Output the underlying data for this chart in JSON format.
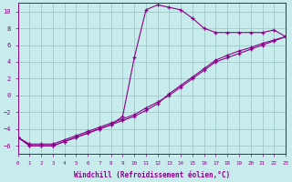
{
  "xlabel": "Windchill (Refroidissement éolien,°C)",
  "ylabel": "",
  "bg_color": "#c8ecec",
  "grid_color": "#a0c8c8",
  "line_color": "#880088",
  "xlim": [
    0,
    23
  ],
  "ylim": [
    -7,
    11
  ],
  "xticks": [
    0,
    1,
    2,
    3,
    4,
    5,
    6,
    7,
    8,
    9,
    10,
    11,
    12,
    13,
    14,
    15,
    16,
    17,
    18,
    19,
    20,
    21,
    22,
    23
  ],
  "yticks": [
    -6,
    -4,
    -2,
    0,
    2,
    4,
    6,
    8,
    10
  ],
  "line1_x": [
    0,
    1,
    2,
    3,
    4,
    5,
    6,
    7,
    8,
    9,
    10,
    11,
    12,
    13,
    14,
    15,
    16,
    17,
    18,
    19,
    20,
    21,
    22,
    23
  ],
  "line1_y": [
    -5.0,
    -6.0,
    -6.0,
    -6.0,
    -5.5,
    -5.0,
    -4.5,
    -4.0,
    -3.5,
    -2.5,
    4.5,
    10.2,
    10.8,
    10.5,
    10.2,
    9.2,
    8.0,
    7.5,
    7.5,
    7.5,
    7.5,
    7.5,
    7.8,
    7.0
  ],
  "line2_x": [
    0,
    1,
    2,
    3,
    4,
    5,
    6,
    7,
    8,
    9,
    10,
    11,
    12,
    13,
    14,
    15,
    16,
    17,
    18,
    19,
    20,
    21,
    22,
    23
  ],
  "line2_y": [
    -5.0,
    -6.0,
    -6.0,
    -6.0,
    -5.5,
    -5.0,
    -4.5,
    -4.0,
    -3.5,
    -3.0,
    -2.5,
    -1.8,
    -1.0,
    0.2,
    1.2,
    2.2,
    3.2,
    4.2,
    4.8,
    5.3,
    5.7,
    6.2,
    6.6,
    7.0
  ],
  "line3_x": [
    0,
    1,
    2,
    3,
    4,
    5,
    6,
    7,
    8,
    9,
    10,
    11,
    12,
    13,
    14,
    15,
    16,
    17,
    18,
    19,
    20,
    21,
    22,
    23
  ],
  "line3_y": [
    -5.0,
    -5.8,
    -5.8,
    -5.8,
    -5.3,
    -4.8,
    -4.3,
    -3.8,
    -3.3,
    -2.8,
    -2.3,
    -1.5,
    -0.8,
    0.0,
    1.0,
    2.0,
    3.0,
    4.0,
    4.5,
    5.0,
    5.5,
    6.0,
    6.5,
    7.0
  ]
}
